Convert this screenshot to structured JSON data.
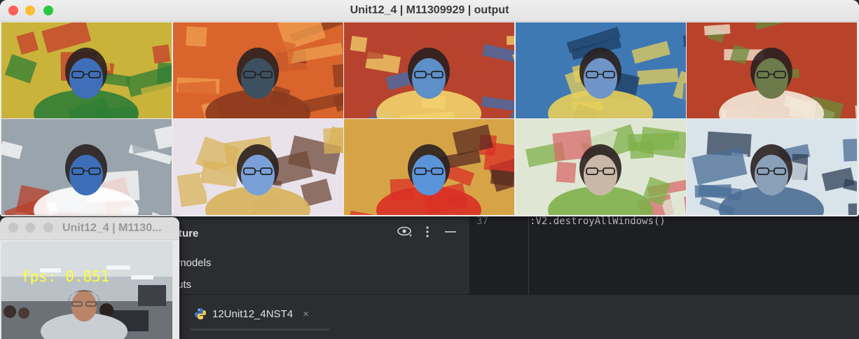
{
  "output_window": {
    "title": "Unit12_4 | M11309929 | output",
    "traffic_colors": [
      "#fe5f57",
      "#febc2e",
      "#28c840"
    ],
    "tiles": [
      {
        "name": "style-tile-1",
        "style": "cubist-yellow-green",
        "bg": "#c9b33a",
        "accent1": "#2f7d36",
        "accent2": "#c43b2c",
        "face": "#3f6fb8"
      },
      {
        "name": "style-tile-2",
        "style": "orange-impression",
        "bg": "#d9642c",
        "accent1": "#8a3a1d",
        "accent2": "#f0a050",
        "face": "#3c5060"
      },
      {
        "name": "style-tile-3",
        "style": "mosaic-red-blue",
        "bg": "#b7432e",
        "accent1": "#f2d36b",
        "accent2": "#3d6fb0",
        "face": "#5d8fc8"
      },
      {
        "name": "style-tile-4",
        "style": "blue-weave",
        "bg": "#3f79b4",
        "accent1": "#e7cf5a",
        "accent2": "#1d3d63",
        "face": "#6f95c8"
      },
      {
        "name": "style-tile-5",
        "style": "warm-red",
        "bg": "#b8432a",
        "accent1": "#f3e8d8",
        "accent2": "#6b8a3a",
        "face": "#6d7a4a"
      },
      {
        "name": "style-tile-6",
        "style": "grey-swirl",
        "bg": "#9aa4ad",
        "accent1": "#ffffff",
        "accent2": "#b8402a",
        "face": "#3d6fb8"
      },
      {
        "name": "style-tile-7",
        "style": "stained-glass",
        "bg": "#e9e2ea",
        "accent1": "#d8b35a",
        "accent2": "#6f4a3a",
        "face": "#7aa0d8"
      },
      {
        "name": "style-tile-8",
        "style": "yellow-red-blob",
        "bg": "#d6a447",
        "accent1": "#d93025",
        "accent2": "#5a2a20",
        "face": "#5b93d8"
      },
      {
        "name": "style-tile-9",
        "style": "leaf-pastel",
        "bg": "#dfe7d4",
        "accent1": "#7fb04a",
        "accent2": "#d86a6a",
        "face": "#c9b8a8"
      },
      {
        "name": "style-tile-10",
        "style": "pale-blue-dots",
        "bg": "#d9e4ea",
        "accent1": "#4a6d95",
        "accent2": "#2e3f55",
        "face": "#8aa0b8"
      }
    ]
  },
  "cam_window": {
    "title": "Unit12_4 | M1130...",
    "fps_label": "fps: 0.851",
    "traffic_color": "#c6c6c6"
  },
  "structure_panel": {
    "title": "ture",
    "items": [
      "models",
      "uts"
    ],
    "icons": [
      "eye-icon",
      "more-icon",
      "hide-icon"
    ]
  },
  "editor": {
    "line_number": "37",
    "code": ":V2.destroyAllWindows()"
  },
  "run_bar": {
    "tab_label": "12Unit12_4NST4",
    "close_glyph": "×"
  },
  "colors": {
    "ide_bg": "#2b2d30",
    "editor_bg": "#1e1f22",
    "text": "#dfe1e5",
    "fps_yellow": "#ffff33"
  }
}
